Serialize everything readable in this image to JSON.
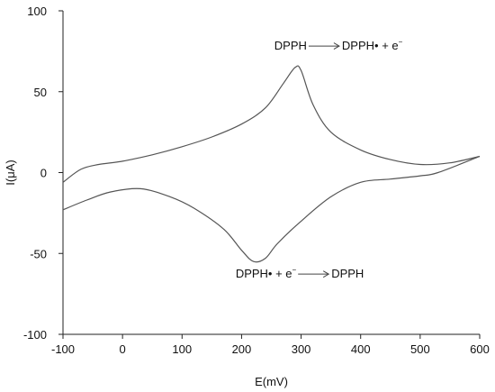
{
  "chart_data": {
    "type": "line",
    "xlabel": "E(mV)",
    "ylabel": "I(μA)",
    "xlim": [
      -100,
      600
    ],
    "ylim": [
      -100,
      100
    ],
    "xticks": [
      "-100",
      "0",
      "100",
      "200",
      "300",
      "400",
      "500",
      "600"
    ],
    "yticks": [
      "100",
      "50",
      "0",
      "-50",
      "-100"
    ],
    "grid": false,
    "line_color": "#555555",
    "series": [
      {
        "x": [
          -100,
          -70,
          -40,
          0,
          50,
          100,
          150,
          200,
          240,
          270,
          290,
          300,
          320,
          350,
          400,
          450,
          500,
          550,
          600
        ],
        "y": [
          -6,
          2,
          5,
          7,
          11,
          16,
          22,
          30,
          40,
          55,
          65,
          63,
          42,
          25,
          14,
          8,
          5,
          6,
          10
        ]
      },
      {
        "x": [
          600,
          530,
          500,
          450,
          400,
          350,
          300,
          260,
          240,
          220,
          200,
          170,
          120,
          80,
          30,
          -20,
          -60,
          -100
        ],
        "y": [
          10,
          0,
          -2,
          -4,
          -6,
          -15,
          -30,
          -44,
          -53,
          -55,
          -48,
          -35,
          -22,
          -15,
          -10,
          -12,
          -17,
          -23
        ]
      }
    ],
    "annotations": [
      {
        "lhs": "DPPH",
        "rhs": "DPPH• + e",
        "rhs_sup": "−",
        "anchor_x": 255,
        "anchor_y": 76
      },
      {
        "lhs": "DPPH• + e",
        "lhs_sup": "−",
        "rhs": "DPPH",
        "anchor_x": 190,
        "anchor_y": -65
      }
    ]
  }
}
